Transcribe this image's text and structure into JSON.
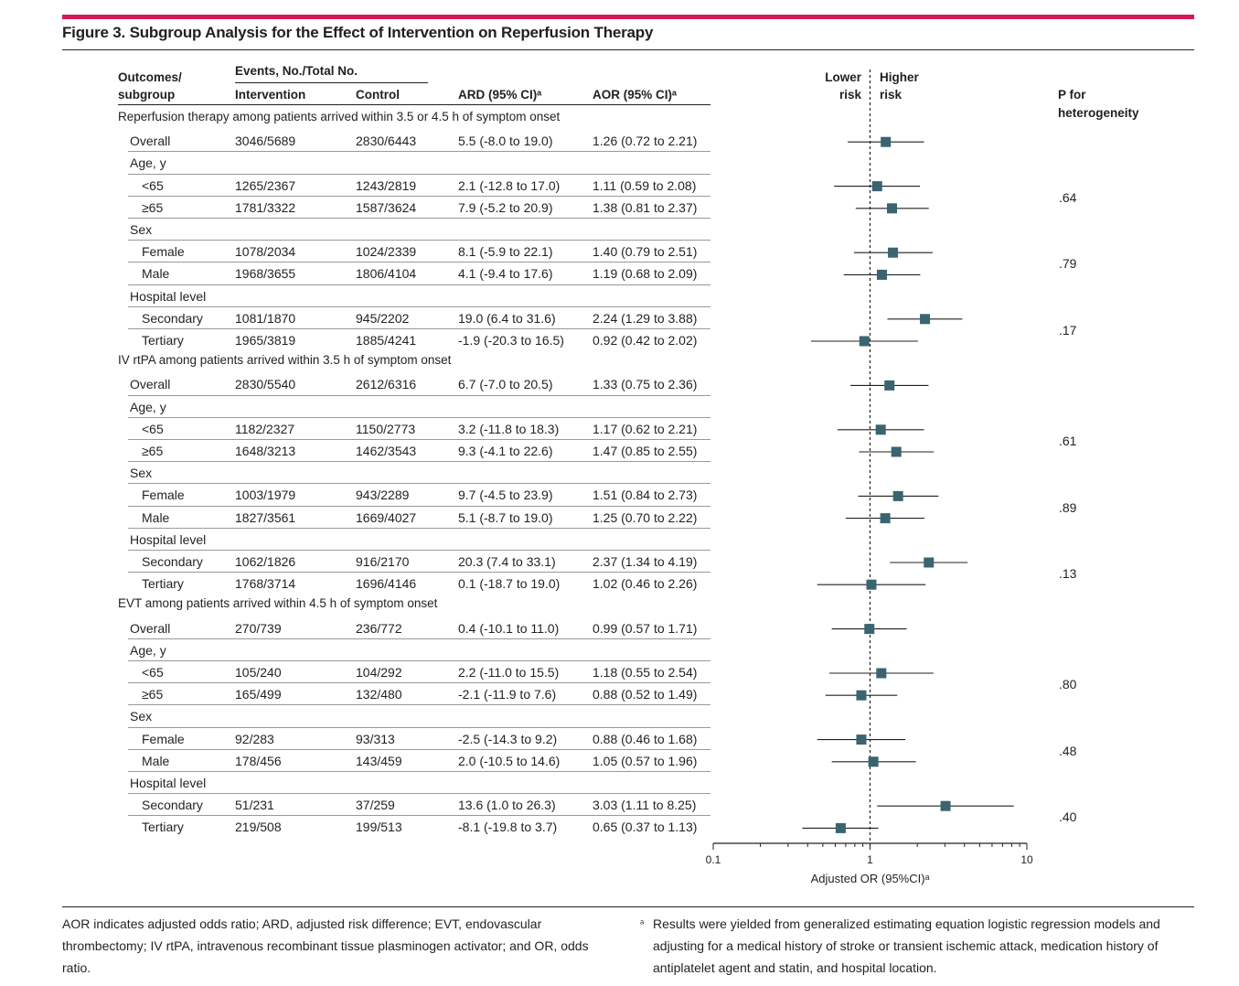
{
  "figure_title": "Figure 3. Subgroup Analysis for the Effect of Intervention on Reperfusion Therapy",
  "headers": {
    "outcomes": "Outcomes/",
    "subgroup": "subgroup",
    "events": "Events, No./Total No.",
    "intervention": "Intervention",
    "control": "Control",
    "ard": "ARD (95% CI)ᵃ",
    "aor": "AOR (95% CI)ᵃ",
    "lower": "Lower",
    "risk1": "risk",
    "higher": "Higher",
    "risk2": "risk",
    "p_for": "P for",
    "heterogeneity": "heterogeneity"
  },
  "sections": [
    {
      "title": "Reperfusion therapy among patients arrived within 3.5 or 4.5 h of symptom onset",
      "rows": [
        {
          "label": "Overall",
          "level": 1,
          "interv": "3046/5689",
          "control": "2830/6443",
          "ard": "5.5 (-8.0 to 19.0)",
          "aor": "1.26 (0.72 to 2.21)"
        },
        {
          "label": "Age, y",
          "level": 1,
          "header": true
        },
        {
          "label": "<65",
          "level": 2,
          "interv": "1265/2367",
          "control": "1243/2819",
          "ard": "2.1 (-12.8 to 17.0)",
          "aor": "1.11 (0.59 to 2.08)"
        },
        {
          "label": "≥65",
          "level": 2,
          "interv": "1781/3322",
          "control": "1587/3624",
          "ard": "7.9 (-5.2 to 20.9)",
          "aor": "1.38 (0.81 to 2.37)"
        },
        {
          "label": "Sex",
          "level": 1,
          "header": true
        },
        {
          "label": "Female",
          "level": 2,
          "interv": "1078/2034",
          "control": "1024/2339",
          "ard": "8.1 (-5.9 to 22.1)",
          "aor": "1.40 (0.79 to 2.51)"
        },
        {
          "label": "Male",
          "level": 2,
          "interv": "1968/3655",
          "control": "1806/4104",
          "ard": "4.1 (-9.4 to 17.6)",
          "aor": "1.19 (0.68 to 2.09)"
        },
        {
          "label": "Hospital level",
          "level": 1,
          "header": true
        },
        {
          "label": "Secondary",
          "level": 2,
          "interv": "1081/1870",
          "control": "945/2202",
          "ard": "19.0 (6.4 to 31.6)",
          "aor": "2.24 (1.29 to 3.88)"
        },
        {
          "label": "Tertiary",
          "level": 2,
          "interv": "1965/3819",
          "control": "1885/4241",
          "ard": "-1.9 (-20.3 to 16.5)",
          "aor": "0.92 (0.42 to 2.02)"
        }
      ]
    },
    {
      "title": "IV rtPA among patients arrived within 3.5 h of symptom onset",
      "rows": [
        {
          "label": "Overall",
          "level": 1,
          "interv": "2830/5540",
          "control": "2612/6316",
          "ard": "6.7 (-7.0 to 20.5)",
          "aor": "1.33 (0.75 to 2.36)"
        },
        {
          "label": "Age, y",
          "level": 1,
          "header": true
        },
        {
          "label": "<65",
          "level": 2,
          "interv": "1182/2327",
          "control": "1150/2773",
          "ard": "3.2 (-11.8 to 18.3)",
          "aor": "1.17 (0.62 to 2.21)"
        },
        {
          "label": "≥65",
          "level": 2,
          "interv": "1648/3213",
          "control": "1462/3543",
          "ard": "9.3 (-4.1 to 22.6)",
          "aor": "1.47 (0.85 to 2.55)"
        },
        {
          "label": "Sex",
          "level": 1,
          "header": true
        },
        {
          "label": "Female",
          "level": 2,
          "interv": "1003/1979",
          "control": "943/2289",
          "ard": "9.7 (-4.5 to 23.9)",
          "aor": "1.51 (0.84 to 2.73)"
        },
        {
          "label": "Male",
          "level": 2,
          "interv": "1827/3561",
          "control": "1669/4027",
          "ard": "5.1 (-8.7 to 19.0)",
          "aor": "1.25 (0.70 to 2.22)"
        },
        {
          "label": "Hospital level",
          "level": 1,
          "header": true
        },
        {
          "label": "Secondary",
          "level": 2,
          "interv": "1062/1826",
          "control": "916/2170",
          "ard": "20.3 (7.4 to 33.1)",
          "aor": "2.37 (1.34 to 4.19)"
        },
        {
          "label": "Tertiary",
          "level": 2,
          "interv": "1768/3714",
          "control": "1696/4146",
          "ard": "0.1 (-18.7 to 19.0)",
          "aor": "1.02 (0.46 to 2.26)"
        }
      ]
    },
    {
      "title": "EVT among patients arrived within 4.5 h of symptom onset",
      "rows": [
        {
          "label": "Overall",
          "level": 1,
          "interv": "270/739",
          "control": "236/772",
          "ard": "0.4 (-10.1 to 11.0)",
          "aor": "0.99 (0.57 to 1.71)"
        },
        {
          "label": "Age, y",
          "level": 1,
          "header": true
        },
        {
          "label": "<65",
          "level": 2,
          "interv": "105/240",
          "control": "104/292",
          "ard": "2.2 (-11.0 to 15.5)",
          "aor": "1.18 (0.55 to 2.54)"
        },
        {
          "label": "≥65",
          "level": 2,
          "interv": "165/499",
          "control": "132/480",
          "ard": "-2.1 (-11.9 to 7.6)",
          "aor": "0.88 (0.52 to 1.49)"
        },
        {
          "label": "Sex",
          "level": 1,
          "header": true
        },
        {
          "label": "Female",
          "level": 2,
          "interv": "92/283",
          "control": "93/313",
          "ard": "-2.5 (-14.3 to 9.2)",
          "aor": "0.88 (0.46 to 1.68)"
        },
        {
          "label": "Male",
          "level": 2,
          "interv": "178/456",
          "control": "143/459",
          "ard": "2.0 (-10.5 to 14.6)",
          "aor": "1.05 (0.57 to 1.96)"
        },
        {
          "label": "Hospital level",
          "level": 1,
          "header": true
        },
        {
          "label": "Secondary",
          "level": 2,
          "interv": "51/231",
          "control": "37/259",
          "ard": "13.6 (1.0 to 26.3)",
          "aor": "3.03 (1.11 to 8.25)"
        },
        {
          "label": "Tertiary",
          "level": 2,
          "interv": "219/508",
          "control": "199/513",
          "ard": "-8.1 (-19.8 to 3.7)",
          "aor": "0.65 (0.37 to 1.13)"
        }
      ]
    }
  ],
  "p_values": [
    ".64",
    ".79",
    ".17",
    ".61",
    ".89",
    ".13",
    ".80",
    ".48",
    ".40"
  ],
  "chart_data": {
    "type": "forest",
    "xlabel": "Adjusted OR (95%CI)ᵃ",
    "x_scale": "log",
    "xlim": [
      0.1,
      10
    ],
    "ticks": [
      "0.1",
      "1",
      "10"
    ],
    "reference_line": 1,
    "marker_color": "#3a6470",
    "points": [
      {
        "or": 1.26,
        "lo": 0.72,
        "hi": 2.21
      },
      {
        "or": 1.11,
        "lo": 0.59,
        "hi": 2.08
      },
      {
        "or": 1.38,
        "lo": 0.81,
        "hi": 2.37
      },
      {
        "or": 1.4,
        "lo": 0.79,
        "hi": 2.51
      },
      {
        "or": 1.19,
        "lo": 0.68,
        "hi": 2.09
      },
      {
        "or": 2.24,
        "lo": 1.29,
        "hi": 3.88
      },
      {
        "or": 0.92,
        "lo": 0.42,
        "hi": 2.02
      },
      {
        "or": 1.33,
        "lo": 0.75,
        "hi": 2.36
      },
      {
        "or": 1.17,
        "lo": 0.62,
        "hi": 2.21
      },
      {
        "or": 1.47,
        "lo": 0.85,
        "hi": 2.55
      },
      {
        "or": 1.51,
        "lo": 0.84,
        "hi": 2.73
      },
      {
        "or": 1.25,
        "lo": 0.7,
        "hi": 2.22
      },
      {
        "or": 2.37,
        "lo": 1.34,
        "hi": 4.19
      },
      {
        "or": 1.02,
        "lo": 0.46,
        "hi": 2.26
      },
      {
        "or": 0.99,
        "lo": 0.57,
        "hi": 1.71
      },
      {
        "or": 1.18,
        "lo": 0.55,
        "hi": 2.54
      },
      {
        "or": 0.88,
        "lo": 0.52,
        "hi": 1.49
      },
      {
        "or": 0.88,
        "lo": 0.46,
        "hi": 1.68
      },
      {
        "or": 1.05,
        "lo": 0.57,
        "hi": 1.96
      },
      {
        "or": 3.03,
        "lo": 1.11,
        "hi": 8.25
      },
      {
        "or": 0.65,
        "lo": 0.37,
        "hi": 1.13
      }
    ]
  },
  "footnotes": {
    "left": "AOR indicates adjusted odds ratio; ARD, adjusted risk difference; EVT, endovascular thrombectomy; IV rtPA, intravenous recombinant tissue plasminogen activator; and OR, odds ratio.",
    "right_mark": "ᵃ",
    "right": "Results were yielded from generalized estimating equation logistic regression models and adjusting for a medical history of stroke or transient ischemic attack, medication history of antiplatelet agent and statin, and hospital location."
  }
}
